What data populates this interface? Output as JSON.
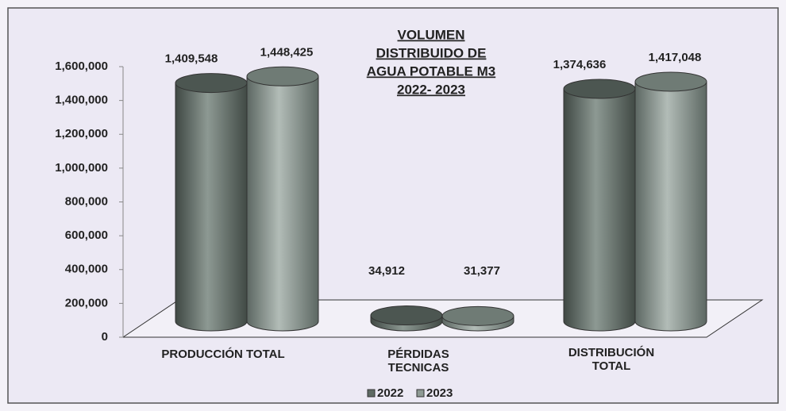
{
  "chart_data": {
    "type": "bar3d",
    "title": [
      "VOLUMEN",
      "DISTRIBUIDO DE",
      "AGUA POTABLE M3",
      "2022- 2023"
    ],
    "categories": [
      "PRODUCCIÓN TOTAL",
      "PÉRDIDAS TECNICAS",
      "DISTRIBUCIÓN TOTAL"
    ],
    "series": [
      {
        "name": "2022",
        "color": "#5f6b64",
        "values": [
          1409548,
          34912,
          1374636
        ],
        "value_labels": [
          "1,409,548",
          "34,912",
          "1,374,636"
        ]
      },
      {
        "name": "2023",
        "color": "#8e9a94",
        "values": [
          1448425,
          31377,
          1417048
        ],
        "value_labels": [
          "1,448,425",
          "31,377",
          "1,417,048"
        ]
      }
    ],
    "ylim": [
      0,
      1600000
    ],
    "yticks": [
      0,
      {
        "value": 200000,
        "label": "200,000"
      },
      {
        "value": 400000,
        "label": "400,000"
      },
      {
        "value": 600000,
        "label": "600,000"
      },
      {
        "value": 800000,
        "label": "800,000"
      },
      {
        "value": 1000000,
        "label": "1,000,000"
      },
      {
        "value": 1200000,
        "label": "1,200,000"
      },
      {
        "value": 1400000,
        "label": "1,400,000"
      },
      {
        "value": 1600000,
        "label": "1,600,000"
      }
    ],
    "legend": "bottom"
  }
}
